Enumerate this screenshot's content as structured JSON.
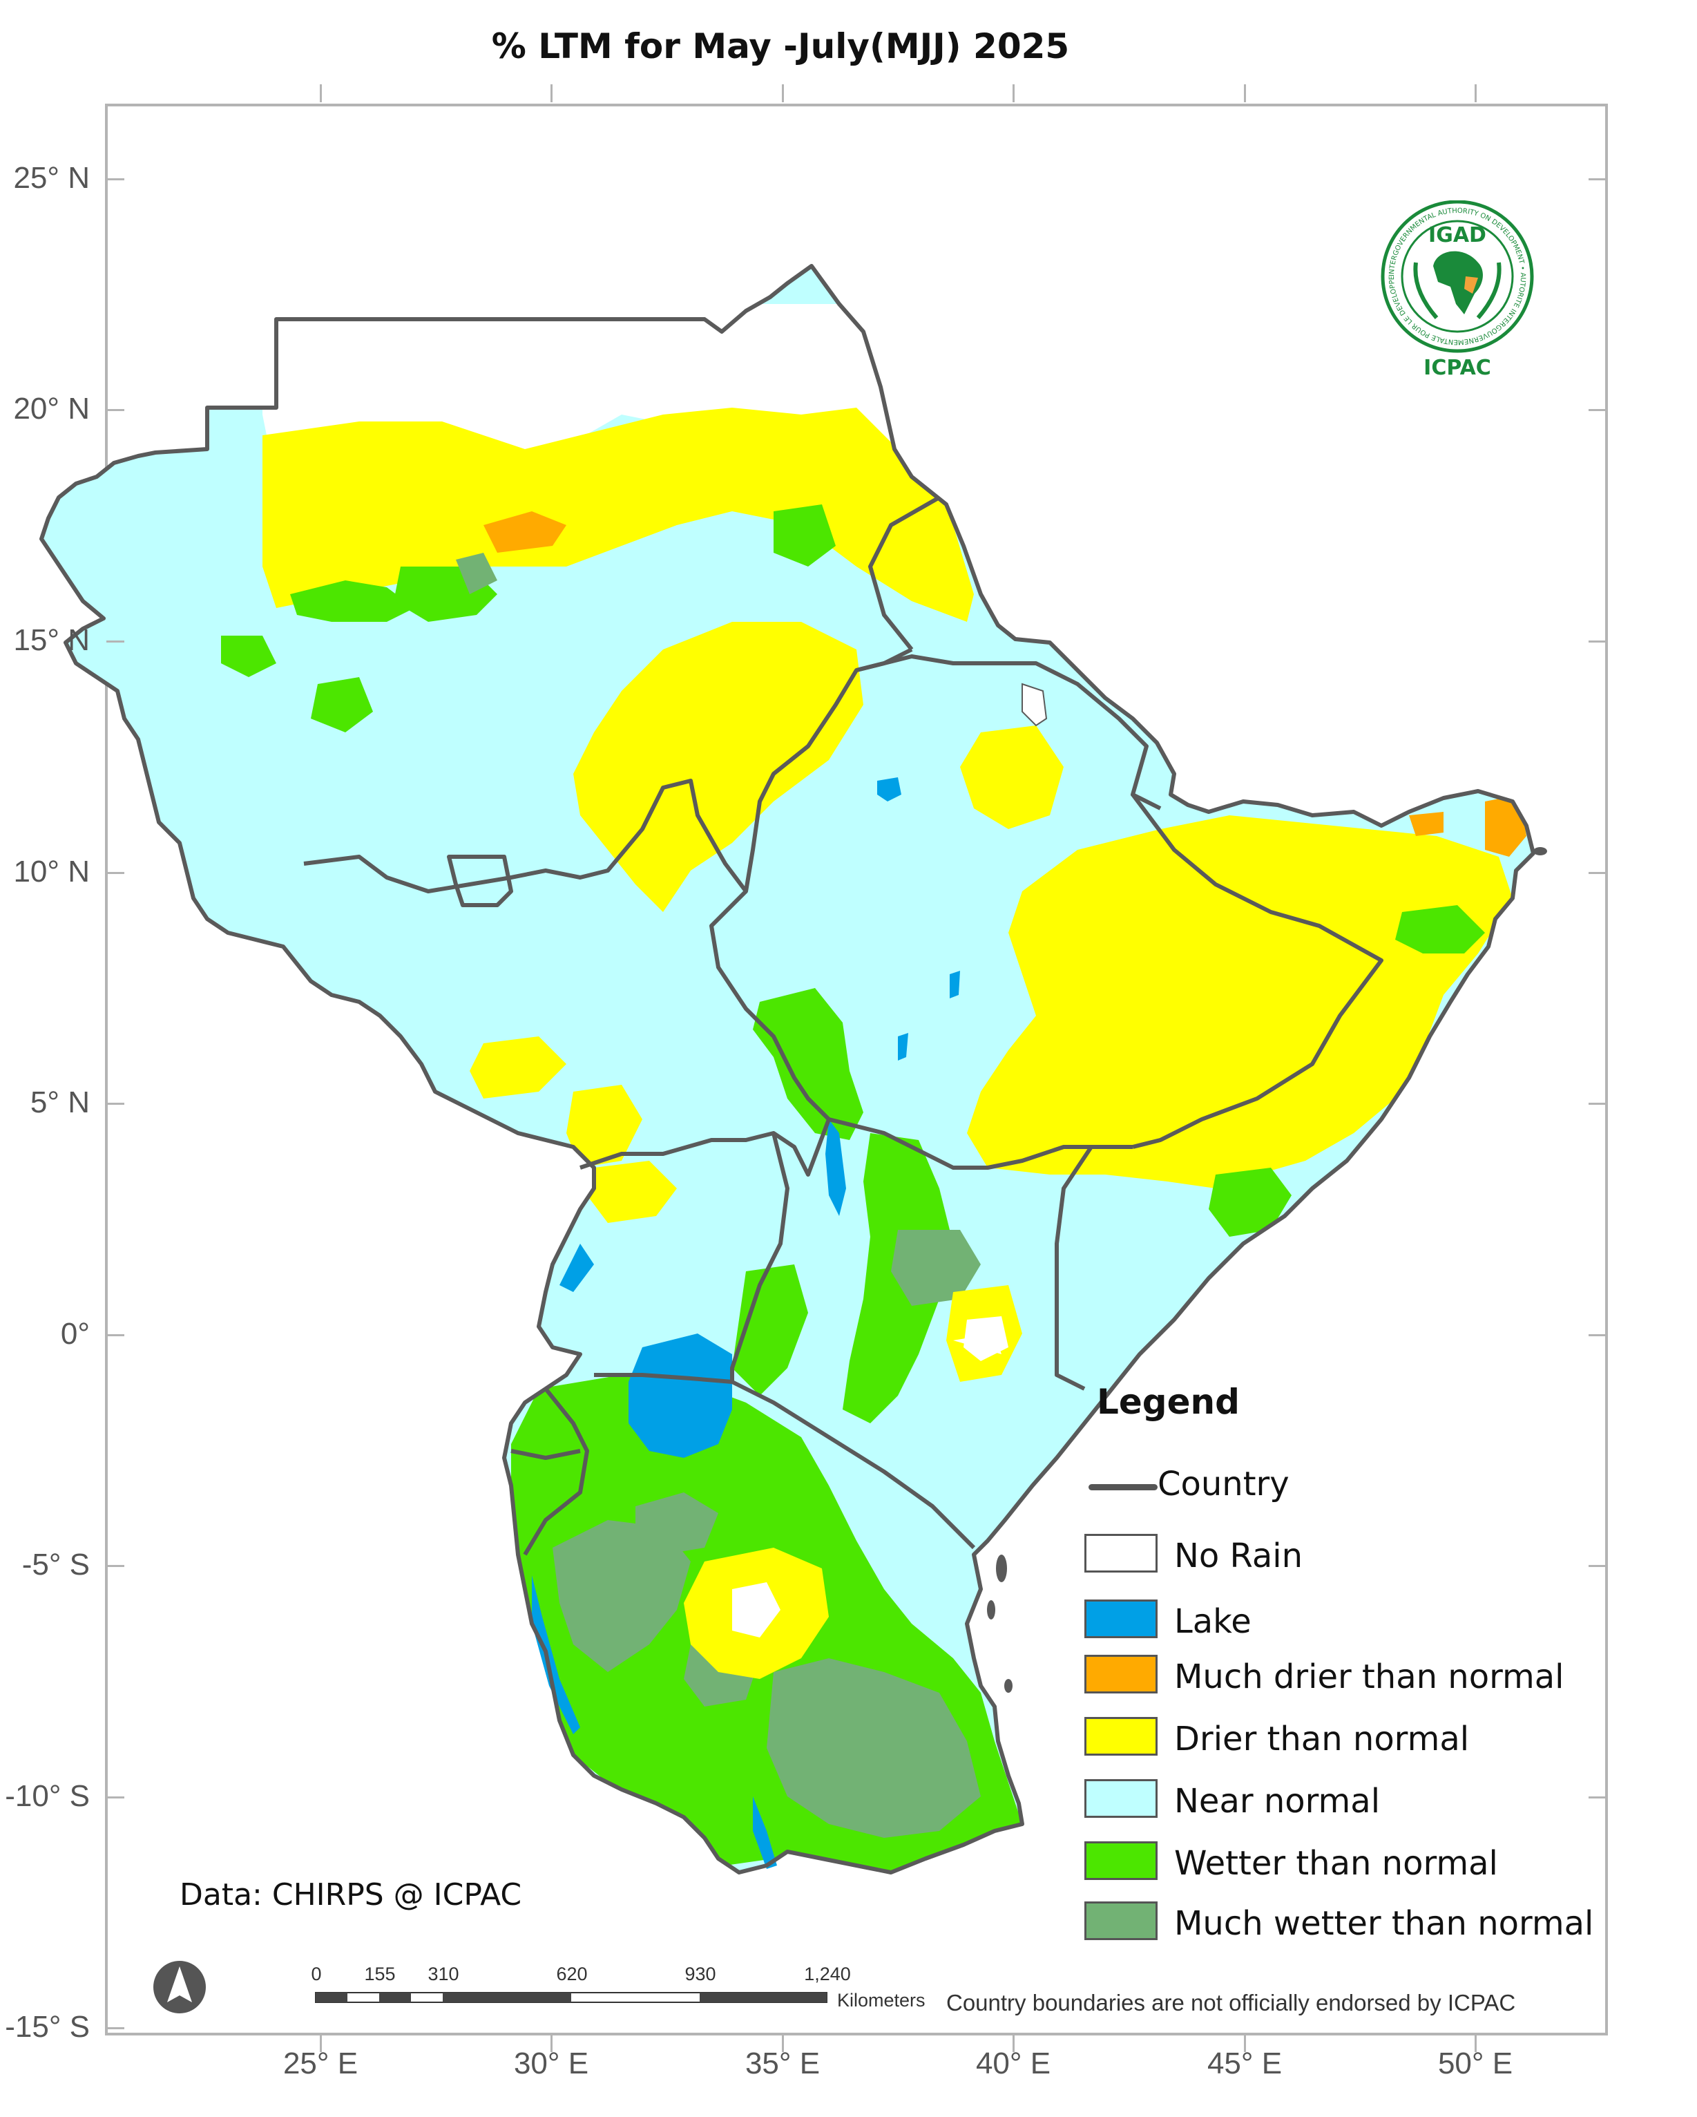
{
  "title": "% LTM  for  May -July(MJJ) 2025",
  "axes": {
    "lat_labels": [
      "25° N",
      "20° N",
      "15° N",
      "10° N",
      "5° N",
      "0°",
      "-5° S",
      "-10° S",
      "-15° S"
    ],
    "lon_labels": [
      "25° E",
      "30° E",
      "35° E",
      "40° E",
      "45° E",
      "50° E"
    ]
  },
  "logo": {
    "acronym": "IGAD",
    "org": "ICPAC",
    "ring_text": "INTERGOVERNMENTAL AUTHORITY ON DEVELOPMENT • AUTORITE INTERGOUVERNEMENTALE POUR LE DEVELOPPEMENT"
  },
  "legend": {
    "title": "Legend",
    "country_label": "Country",
    "items": [
      {
        "label": "No Rain",
        "color": "#ffffff"
      },
      {
        "label": "Lake",
        "color": "#00a0e6"
      },
      {
        "label": "Much drier than normal",
        "color": "#ffaa00"
      },
      {
        "label": "Drier than normal",
        "color": "#ffff00"
      },
      {
        "label": "Near normal",
        "color": "#bfffff"
      },
      {
        "label": "Wetter than normal",
        "color": "#4ce600"
      },
      {
        "label": "Much wetter than normal",
        "color": "#72b274"
      }
    ]
  },
  "credit": "Data: CHIRPS @ ICPAC",
  "scale_bar": {
    "ticks": [
      "0",
      "155",
      "310",
      "620",
      "930",
      "1,240"
    ],
    "unit": "Kilometers"
  },
  "disclaimer": "Country boundaries are not officially endorsed by ICPAC",
  "colors": {
    "border": "#5a5a5a",
    "frame": "#b4b4b4",
    "logo_green": "#1a8a3a",
    "logo_orange": "#f2a23a"
  }
}
